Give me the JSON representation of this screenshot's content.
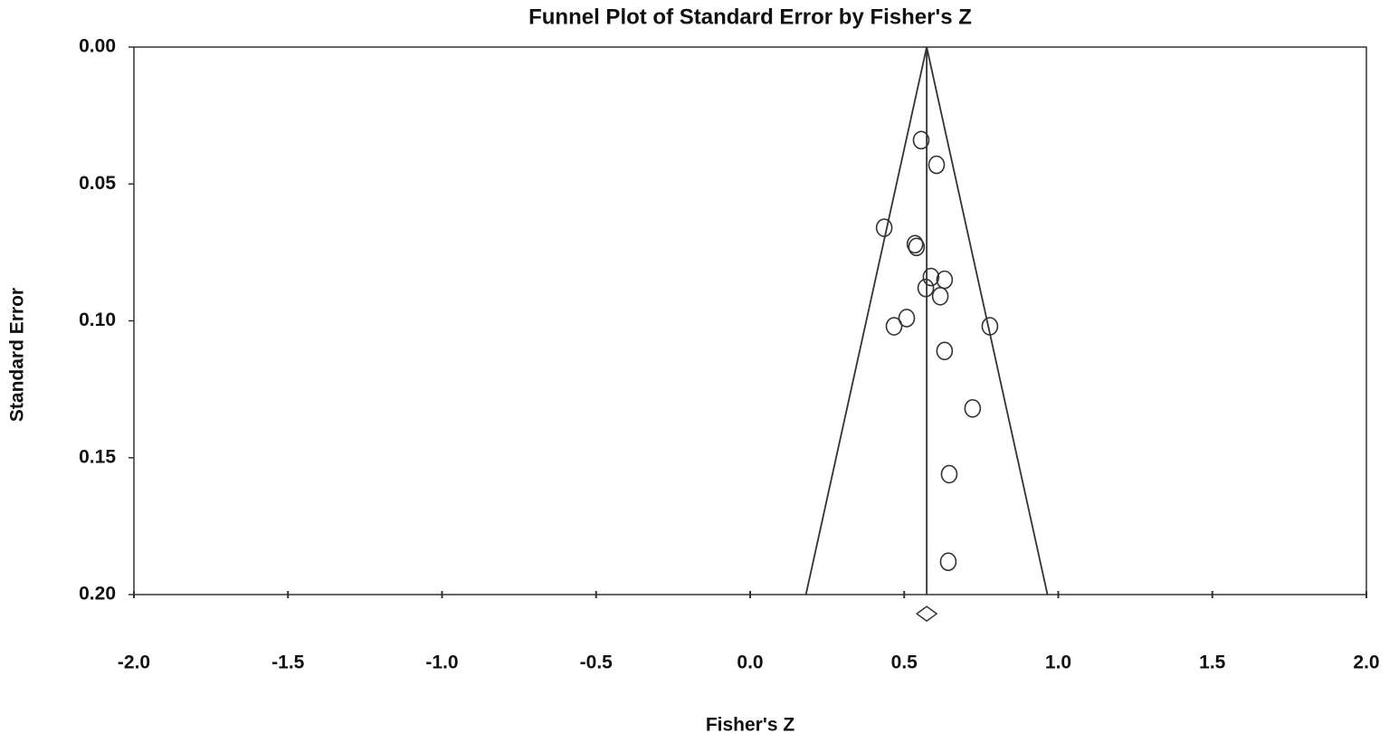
{
  "chart_data": {
    "type": "scatter",
    "title": "Funnel Plot of Standard Error by Fisher's Z",
    "x_label": "Fisher's Z",
    "y_label": "Standard Error",
    "xlim": [
      -2.0,
      2.0
    ],
    "ylim": [
      0.0,
      0.2
    ],
    "y_inverted": true,
    "xticks": [
      {
        "value": -2.0,
        "label": "-2.0"
      },
      {
        "value": -1.5,
        "label": "-1.5"
      },
      {
        "value": -1.0,
        "label": "-1.0"
      },
      {
        "value": -0.5,
        "label": "-0.5"
      },
      {
        "value": 0.0,
        "label": "0.0"
      },
      {
        "value": 0.5,
        "label": "0.5"
      },
      {
        "value": 1.0,
        "label": "1.0"
      },
      {
        "value": 1.5,
        "label": "1.5"
      },
      {
        "value": 2.0,
        "label": "2.0"
      }
    ],
    "yticks": [
      {
        "value": 0.0,
        "label": "0.00"
      },
      {
        "value": 0.05,
        "label": "0.05"
      },
      {
        "value": 0.1,
        "label": "0.10"
      },
      {
        "value": 0.15,
        "label": "0.15"
      },
      {
        "value": 0.2,
        "label": "0.20"
      }
    ],
    "color": "#333333",
    "x": [
      0.555,
      0.605,
      0.435,
      0.535,
      0.54,
      0.587,
      0.631,
      0.57,
      0.617,
      0.508,
      0.467,
      0.778,
      0.631,
      0.722,
      0.646,
      0.643
    ],
    "y": [
      0.034,
      0.043,
      0.066,
      0.072,
      0.073,
      0.084,
      0.085,
      0.088,
      0.091,
      0.099,
      0.102,
      0.102,
      0.111,
      0.132,
      0.156,
      0.188
    ],
    "summary": {
      "x": 0.573,
      "y": 0.207
    },
    "funnel_lines": [
      {
        "x": [
          0.573,
          0.181
        ],
        "y": [
          0.0,
          0.2
        ]
      },
      {
        "x": [
          0.573,
          0.965
        ],
        "y": [
          0.0,
          0.2
        ]
      },
      {
        "x": [
          0.573,
          0.573
        ],
        "y": [
          0.0,
          0.2
        ]
      }
    ]
  }
}
